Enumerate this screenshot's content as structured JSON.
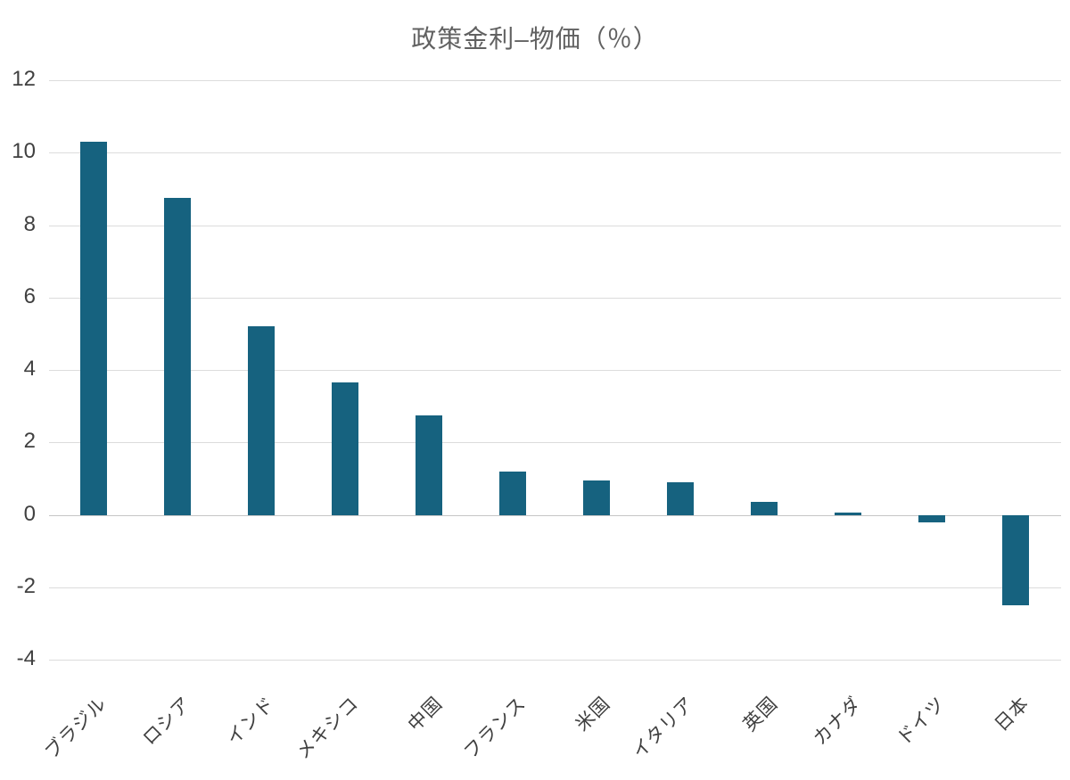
{
  "chart_data": {
    "type": "bar",
    "title": "政策金利–物価（％）",
    "categories": [
      "ブラジル",
      "ロシア",
      "インド",
      "メキシコ",
      "中国",
      "フランス",
      "米国",
      "イタリア",
      "英国",
      "カナダ",
      "ドイツ",
      "日本"
    ],
    "values": [
      10.3,
      8.75,
      5.2,
      3.65,
      2.75,
      1.2,
      0.95,
      0.9,
      0.35,
      0.05,
      -0.2,
      -2.5
    ],
    "xlabel": "",
    "ylabel": "",
    "ylim": [
      -4,
      12
    ],
    "yticks": [
      12,
      10,
      8,
      6,
      4,
      2,
      0,
      -2,
      -4
    ],
    "grid": true,
    "legend": "none",
    "x_label_rotation_deg": 45,
    "colors": {
      "bar": "#16627F",
      "gridline": "#dcdcdc",
      "zero_line": "#c6c6c6",
      "title_text": "#616161",
      "axis_text": "#404040",
      "background": "#ffffff"
    }
  }
}
